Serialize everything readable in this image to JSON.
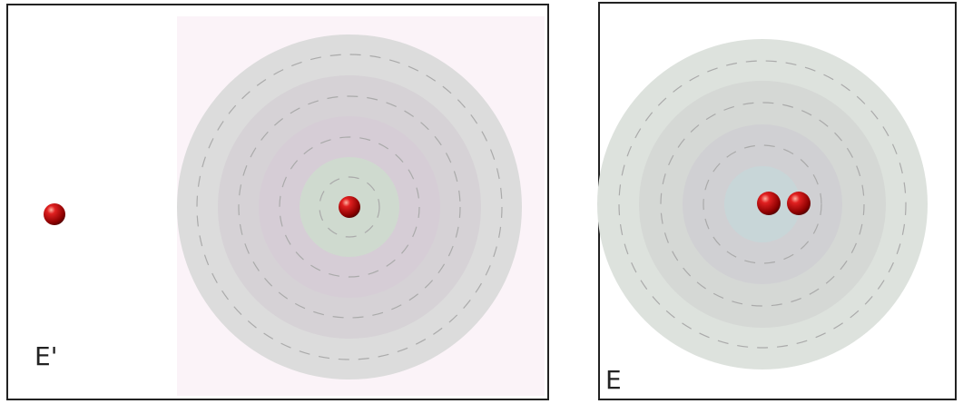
{
  "panels": [
    {
      "label": "E'"
    },
    {
      "label": "E"
    }
  ]
}
